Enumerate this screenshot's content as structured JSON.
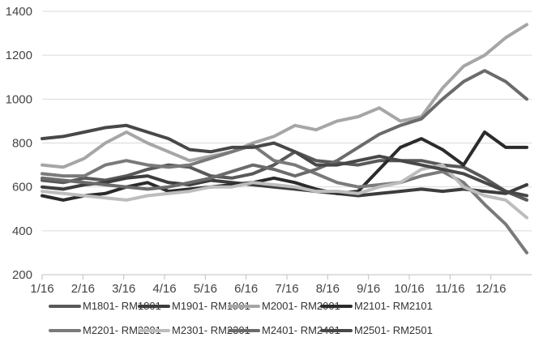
{
  "chart_data": {
    "type": "line",
    "title": "",
    "xlabel": "",
    "ylabel": "",
    "ylim": [
      200,
      1400
    ],
    "yticks": [
      200,
      400,
      600,
      800,
      1000,
      1200,
      1400
    ],
    "xticks": [
      "1/16",
      "2/16",
      "3/16",
      "4/16",
      "5/16",
      "6/16",
      "7/16",
      "8/16",
      "9/16",
      "10/16",
      "11/16",
      "12/16"
    ],
    "grid": "horizontal",
    "legend": "bottom",
    "x": [
      "1/16",
      "2/1",
      "2/16",
      "3/1",
      "3/16",
      "4/1",
      "4/16",
      "5/1",
      "5/16",
      "6/1",
      "6/16",
      "7/1",
      "7/16",
      "8/1",
      "8/16",
      "9/1",
      "9/16",
      "10/1",
      "10/16",
      "11/1",
      "11/16",
      "12/1",
      "12/16",
      "12/31"
    ],
    "series": [
      {
        "name": "M1801- RM1801",
        "color": "#595959",
        "values": [
          630,
          620,
          640,
          630,
          650,
          680,
          700,
          690,
          650,
          640,
          660,
          700,
          760,
          720,
          710,
          700,
          720,
          720,
          720,
          700,
          690,
          640,
          580,
          540
        ]
      },
      {
        "name": "M1901- RM1901",
        "color": "#3d3d3d",
        "values": [
          600,
          590,
          610,
          620,
          640,
          650,
          620,
          610,
          630,
          620,
          610,
          600,
          590,
          580,
          570,
          560,
          570,
          580,
          590,
          580,
          590,
          580,
          570,
          610
        ]
      },
      {
        "name": "M2001- RM2001",
        "color": "#a6a6a6",
        "values": [
          700,
          690,
          730,
          800,
          850,
          800,
          760,
          720,
          740,
          760,
          800,
          830,
          880,
          860,
          900,
          920,
          960,
          900,
          920,
          1050,
          1150,
          1200,
          1280,
          1340
        ]
      },
      {
        "name": "M2101- RM2101",
        "color": "#2b2b2b",
        "values": [
          560,
          540,
          560,
          570,
          600,
          620,
          580,
          590,
          600,
          610,
          620,
          640,
          620,
          590,
          570,
          580,
          680,
          780,
          820,
          770,
          700,
          850,
          780,
          780
        ]
      },
      {
        "name": "M2201- RM2201",
        "color": "#7a7a7a",
        "values": [
          660,
          650,
          650,
          700,
          720,
          700,
          690,
          700,
          730,
          760,
          790,
          720,
          700,
          660,
          620,
          600,
          610,
          620,
          650,
          670,
          620,
          520,
          430,
          300
        ]
      },
      {
        "name": "M2301- RM2301",
        "color": "#bdbdbd",
        "values": [
          580,
          570,
          560,
          550,
          540,
          560,
          570,
          580,
          600,
          600,
          620,
          610,
          600,
          580,
          580,
          570,
          600,
          620,
          680,
          700,
          600,
          560,
          540,
          460
        ]
      },
      {
        "name": "M2401- RM2401",
        "color": "#6b6b6b",
        "values": [
          640,
          630,
          620,
          610,
          600,
          590,
          600,
          620,
          640,
          670,
          700,
          680,
          650,
          680,
          720,
          780,
          840,
          880,
          910,
          1000,
          1080,
          1130,
          1080,
          1000
        ]
      },
      {
        "name": "M2501- RM2501",
        "color": "#484848",
        "values": [
          820,
          830,
          850,
          870,
          880,
          850,
          820,
          770,
          760,
          780,
          780,
          800,
          760,
          700,
          700,
          720,
          740,
          720,
          700,
          680,
          660,
          620,
          580,
          560
        ]
      }
    ]
  }
}
